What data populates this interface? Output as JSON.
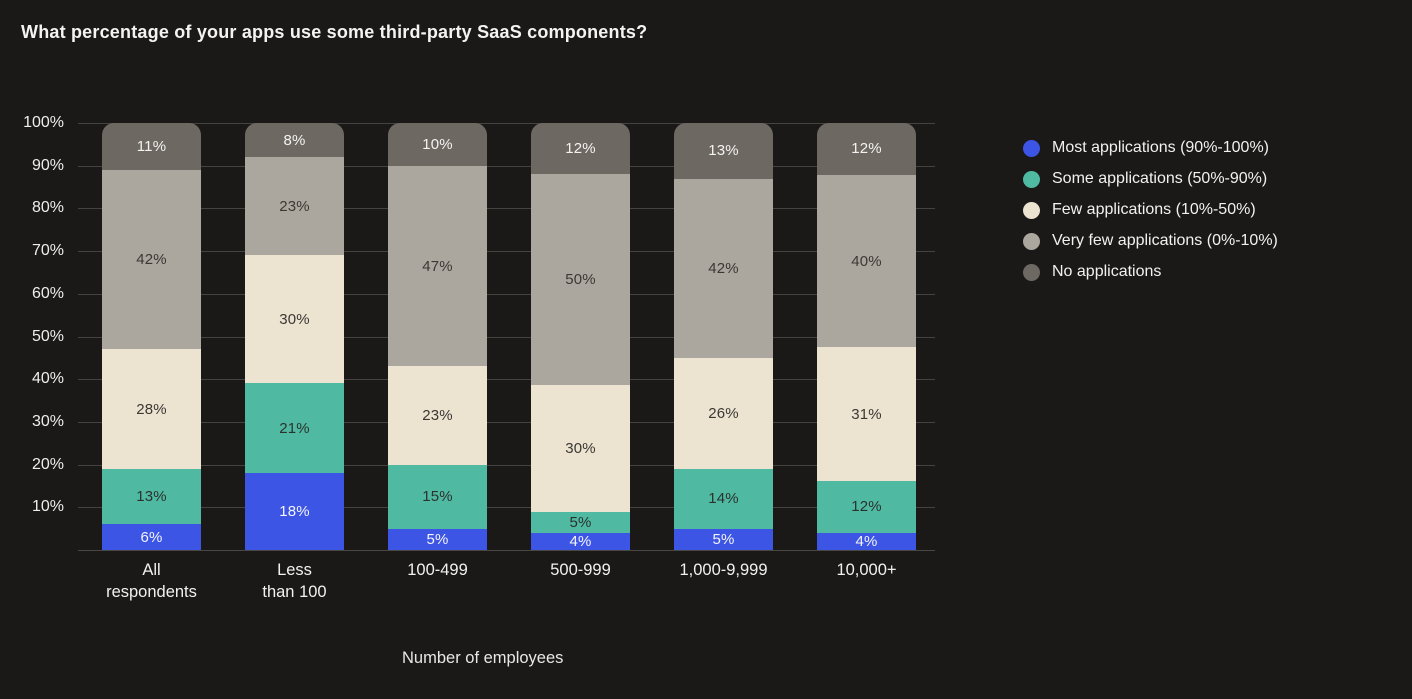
{
  "page": {
    "background_color": "#1a1918",
    "text_color": "#f2f1ef",
    "gridline_color": "#454340"
  },
  "chart_data": {
    "type": "bar",
    "stacked": true,
    "title": "What percentage of your apps use some third-party SaaS components?",
    "xlabel": "Number of employees",
    "ylabel": "",
    "ylim": [
      0,
      100
    ],
    "grid": true,
    "legend_position": "right",
    "y_ticks": [
      "10%",
      "20%",
      "30%",
      "40%",
      "50%",
      "60%",
      "70%",
      "80%",
      "90%",
      "100%"
    ],
    "categories": [
      "All\nrespondents",
      "Less\nthan 100",
      "100-499",
      "500-999",
      "1,000-9,999",
      "10,000+"
    ],
    "series": [
      {
        "name": "Most applications (90%-100%)",
        "color": "#3c55e5",
        "label_color": "#f5f5fb",
        "values": [
          6,
          18,
          5,
          4,
          5,
          4
        ],
        "value_labels": [
          "6%",
          "18%",
          "5%",
          "4%",
          "5%",
          "4%"
        ]
      },
      {
        "name": "Some applications (50%-90%)",
        "color": "#4fb9a2",
        "label_color": "#2b322e",
        "values": [
          13,
          21,
          15,
          5,
          14,
          12
        ],
        "value_labels": [
          "13%",
          "21%",
          "15%",
          "5%",
          "14%",
          "12%"
        ]
      },
      {
        "name": "Few applications (10%-50%)",
        "color": "#ece3d1",
        "label_color": "#3b3834",
        "values": [
          28,
          30,
          23,
          30,
          26,
          31
        ],
        "value_labels": [
          "28%",
          "30%",
          "23%",
          "30%",
          "26%",
          "31%"
        ]
      },
      {
        "name": "Very few applications (0%-10%)",
        "color": "#aba79f",
        "label_color": "#3b3834",
        "values": [
          42,
          23,
          47,
          50,
          42,
          40
        ],
        "value_labels": [
          "42%",
          "23%",
          "47%",
          "50%",
          "42%",
          "40%"
        ]
      },
      {
        "name": "No applications",
        "color": "#6d6862",
        "label_color": "#f4f3f1",
        "values": [
          11,
          8,
          10,
          12,
          13,
          12
        ],
        "value_labels": [
          "11%",
          "8%",
          "10%",
          "12%",
          "13%",
          "12%"
        ]
      }
    ]
  }
}
